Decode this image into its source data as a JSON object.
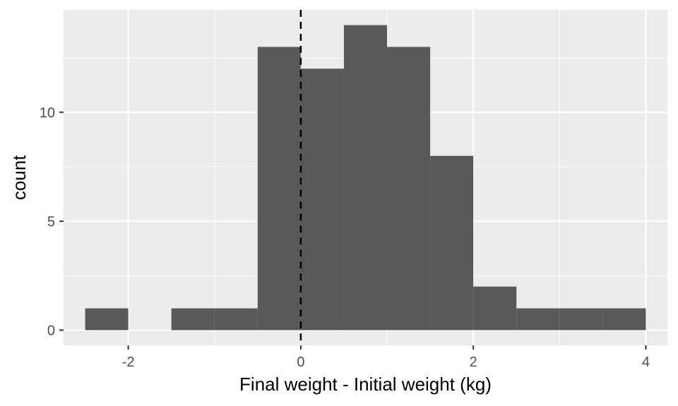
{
  "chart_data": {
    "type": "bar",
    "subtype": "histogram",
    "title": "",
    "xlabel": "Final weight - Initial weight (kg)",
    "ylabel": "count",
    "bin_width": 0.5,
    "bins": [
      {
        "x0": -2.5,
        "x1": -2.0,
        "count": 1
      },
      {
        "x0": -2.0,
        "x1": -1.5,
        "count": 0
      },
      {
        "x0": -1.5,
        "x1": -1.0,
        "count": 1
      },
      {
        "x0": -1.0,
        "x1": -0.5,
        "count": 1
      },
      {
        "x0": -0.5,
        "x1": 0.0,
        "count": 13
      },
      {
        "x0": 0.0,
        "x1": 0.5,
        "count": 12
      },
      {
        "x0": 0.5,
        "x1": 1.0,
        "count": 14
      },
      {
        "x0": 1.0,
        "x1": 1.5,
        "count": 13
      },
      {
        "x0": 1.5,
        "x1": 2.0,
        "count": 8
      },
      {
        "x0": 2.0,
        "x1": 2.5,
        "count": 2
      },
      {
        "x0": 2.5,
        "x1": 3.0,
        "count": 1
      },
      {
        "x0": 3.0,
        "x1": 3.5,
        "count": 1
      },
      {
        "x0": 3.5,
        "x1": 4.0,
        "count": 1
      }
    ],
    "xlim": [
      -2.75,
      4.25
    ],
    "ylim": [
      -0.7,
      14.7
    ],
    "x_ticks": [
      -2,
      0,
      2,
      4
    ],
    "x_tick_labels": [
      "-2",
      "0",
      "2",
      "4"
    ],
    "y_ticks": [
      0,
      5,
      10
    ],
    "y_tick_labels": [
      "0",
      "5",
      "10"
    ],
    "x_minor": [
      -1,
      1,
      3
    ],
    "y_minor": [
      2.5,
      7.5,
      12.5
    ],
    "reference_line": {
      "x": 0,
      "style": "dashed",
      "color": "#000000"
    },
    "grid": true,
    "colors": {
      "panel_background": "#ebebeb",
      "grid": "#ffffff",
      "bar_fill": "#595959",
      "tick_color": "#333333"
    }
  }
}
